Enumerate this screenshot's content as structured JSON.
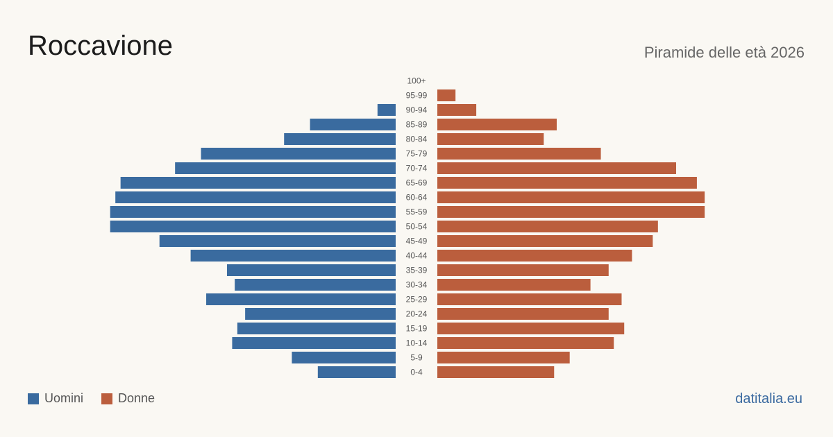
{
  "header": {
    "title": "Roccavione",
    "subtitle": "Piramide delle età 2026"
  },
  "legend": {
    "men_label": "Uomini",
    "women_label": "Donne"
  },
  "footer": {
    "brand": "datitalia.eu"
  },
  "colors": {
    "men": "#3a6b9f",
    "women": "#bb5e3d",
    "label": "#555555"
  },
  "chart_data": {
    "type": "bar",
    "orientation": "horizontal-pyramid",
    "title": "Piramide delle età 2026",
    "categories": [
      "100+",
      "95-99",
      "90-94",
      "85-89",
      "80-84",
      "75-79",
      "70-74",
      "65-69",
      "60-64",
      "55-59",
      "50-54",
      "45-49",
      "40-44",
      "35-39",
      "30-34",
      "25-29",
      "20-24",
      "15-19",
      "10-14",
      "5-9",
      "0-4"
    ],
    "series": [
      {
        "name": "Uomini",
        "values": [
          0,
          0,
          7,
          33,
          43,
          75,
          85,
          106,
          108,
          110,
          110,
          91,
          79,
          65,
          62,
          73,
          58,
          61,
          63,
          40,
          30
        ]
      },
      {
        "name": "Donne",
        "values": [
          0,
          7,
          15,
          46,
          41,
          63,
          92,
          100,
          103,
          103,
          85,
          83,
          75,
          66,
          59,
          71,
          66,
          72,
          68,
          51,
          45
        ]
      }
    ],
    "xlim": [
      0,
      115
    ],
    "grid": false,
    "legend_position": "bottom-left"
  }
}
